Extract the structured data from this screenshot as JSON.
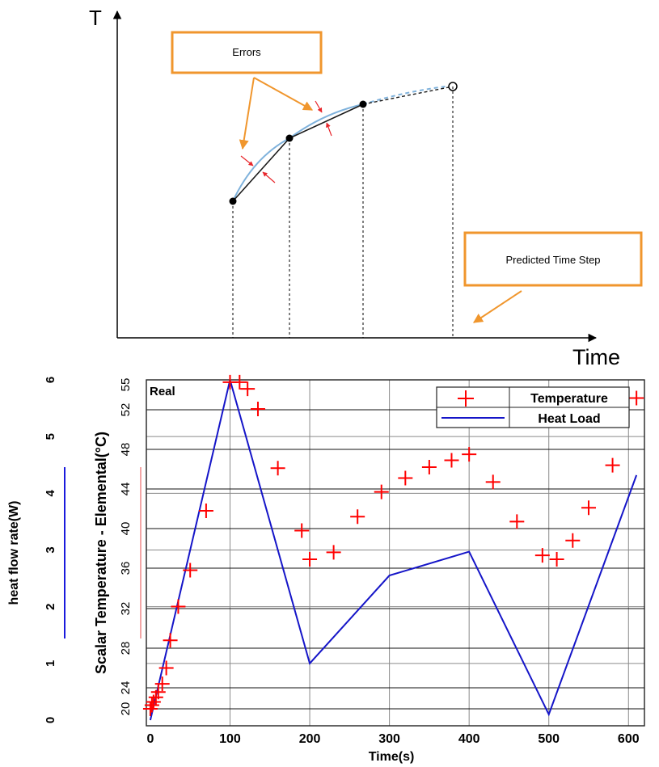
{
  "chart_data": [
    {
      "type": "diagram",
      "axis_y_label": "T",
      "axis_x_label": "Time",
      "callouts": [
        {
          "id": "errors",
          "text": "Errors",
          "color": "#f0962d"
        },
        {
          "id": "predicted",
          "text": "Predicted Time Step",
          "color": "#f0962d"
        }
      ],
      "colors": {
        "true_curve": "#7fb2dc",
        "approx_line": "#1a1a1a",
        "error_marks": "#e8262b",
        "callout_border": "#f0962d"
      }
    },
    {
      "type": "line",
      "title": "",
      "annotation": "Real",
      "xlabel": "Time(s)",
      "y_left_label": "heat flow rate(W)",
      "y_right_label": "Scalar Temperature - Elemental(°C)",
      "xlim": [
        -5,
        620
      ],
      "x_ticks": [
        "0",
        "100",
        "200",
        "300",
        "400",
        "500",
        "600"
      ],
      "x_tick_values": [
        0,
        100,
        200,
        300,
        400,
        500,
        600
      ],
      "y_left_ticks": [
        "0",
        "1",
        "2",
        "3",
        "4",
        "5",
        "6"
      ],
      "y_left_lim": [
        -0.1,
        6
      ],
      "y_temp_ticks": [
        "20",
        "24",
        "28",
        "32",
        "36",
        "40",
        "44",
        "48",
        "52",
        "55"
      ],
      "y_temp_tick_values": [
        20,
        24,
        28,
        32,
        36,
        40,
        44,
        48,
        52,
        55
      ],
      "legend": {
        "position": "top-right",
        "entries": [
          "Temperature",
          "Heat Load"
        ]
      },
      "grid": true,
      "colors": {
        "temperature": "#ff0000",
        "heat_load": "#1515c8",
        "left_axis_bar": "#1a1adc",
        "right_axis_bar": "#f4a6a6"
      },
      "series": [
        {
          "name": "Heat Load",
          "axis": "left",
          "x": [
            0,
            100,
            200,
            300,
            400,
            500,
            610
          ],
          "values": [
            0,
            6,
            1,
            2.55,
            2.97,
            0.1,
            4.32
          ]
        },
        {
          "name": "Temperature",
          "axis": "temperature",
          "x": [
            0,
            2,
            4,
            7,
            10,
            15,
            20,
            25,
            35,
            50,
            70,
            100,
            112,
            122,
            135,
            160,
            190,
            200,
            230,
            260,
            290,
            320,
            350,
            378,
            400,
            430,
            460,
            492,
            510,
            530,
            550,
            580,
            610
          ],
          "values": [
            20,
            20.7,
            21.3,
            22.2,
            23.2,
            24.4,
            26,
            28.8,
            32.2,
            35.8,
            41.8,
            55.3,
            55.3,
            54.5,
            52.1,
            46.1,
            39.8,
            36.9,
            37.6,
            41.2,
            43.7,
            45.1,
            46.2,
            46.9,
            47.5,
            44.7,
            40.7,
            37.3,
            36.9,
            38.8,
            42.1,
            46.4,
            53.4
          ]
        }
      ]
    }
  ]
}
